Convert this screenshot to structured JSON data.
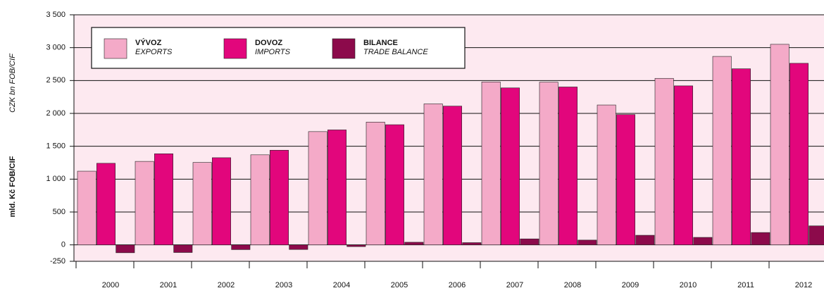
{
  "chart_data": {
    "type": "bar",
    "y_axis_label": "mld. Kč FOB/CIF",
    "y_axis_label_en": "CZK bn FOB/CIF",
    "categories": [
      "2000",
      "2001",
      "2002",
      "2003",
      "2004",
      "2005",
      "2006",
      "2007",
      "2008",
      "2009",
      "2010",
      "2011",
      "2012"
    ],
    "series": [
      {
        "name": "VÝVOZ",
        "name_en": "EXPORTS",
        "color": "#f4aac8",
        "values": [
          1121,
          1270,
          1254,
          1370,
          1723,
          1868,
          2145,
          2479,
          2475,
          2128,
          2533,
          2867,
          3051
        ]
      },
      {
        "name": "DOVOZ",
        "name_en": "IMPORTS",
        "color": "#e2067c",
        "values": [
          1241,
          1386,
          1326,
          1440,
          1749,
          1828,
          2111,
          2388,
          2402,
          1982,
          2419,
          2679,
          2762
        ]
      },
      {
        "name": "BILANCE",
        "name_en": "TRADE BALANCE",
        "color": "#8c0a4b",
        "values": [
          -120,
          -116,
          -72,
          -70,
          -26,
          40,
          34,
          91,
          73,
          146,
          114,
          188,
          289
        ]
      }
    ],
    "ylim": [
      -250,
      3500
    ],
    "yticks": [
      -250,
      0,
      500,
      {
        "value": 1000,
        "label": "1 000"
      },
      {
        "value": 1500,
        "label": "1 500"
      },
      {
        "value": 2000,
        "label": "2 000"
      },
      {
        "value": 2500,
        "label": "2 500"
      },
      {
        "value": 3000,
        "label": "3 000"
      },
      {
        "value": 3500,
        "label": "3 500"
      }
    ],
    "grid": true,
    "background": "#fde9f0"
  }
}
